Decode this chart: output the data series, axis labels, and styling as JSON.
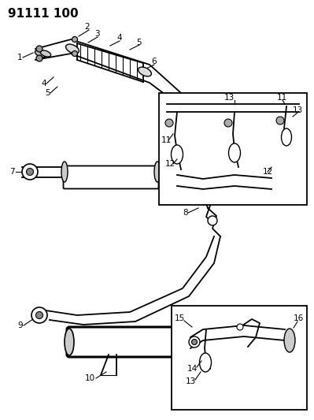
{
  "title": "91111 100",
  "bg_color": "#ffffff",
  "line_color": "#000000",
  "label_color": "#000000",
  "title_fontsize": 11,
  "label_fontsize": 7.5,
  "fig_width": 3.99,
  "fig_height": 5.33,
  "dpi": 100
}
